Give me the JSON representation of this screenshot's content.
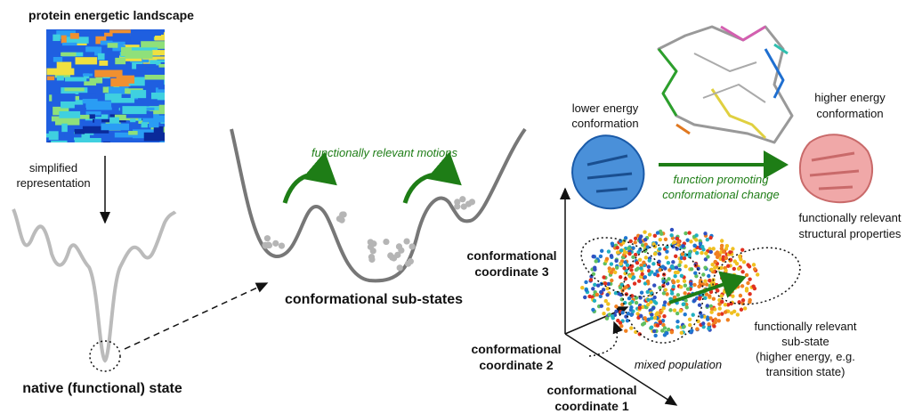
{
  "landscape": {
    "title": "protein energetic landscape",
    "transition": [
      "simplified",
      "representation"
    ],
    "state": "native (functional) state"
  },
  "substates": {
    "motions": "functionally relevant motions",
    "title": "conformational sub-states"
  },
  "conformations": {
    "lower": [
      "lower energy",
      "conformation"
    ],
    "higher": [
      "higher energy",
      "conformation"
    ],
    "change": [
      "function promoting",
      "conformational change"
    ],
    "properties": [
      "functionally relevant",
      "structural properties"
    ]
  },
  "coordinates": {
    "axis3": [
      "conformational",
      "coordinate 3"
    ],
    "axis2": [
      "conformational",
      "coordinate 2"
    ],
    "axis1": [
      "conformational",
      "coordinate 1"
    ],
    "substate": [
      "functionally relevant",
      "sub-state",
      "(higher energy, e.g.",
      "transition state)"
    ],
    "population": "mixed population"
  }
}
